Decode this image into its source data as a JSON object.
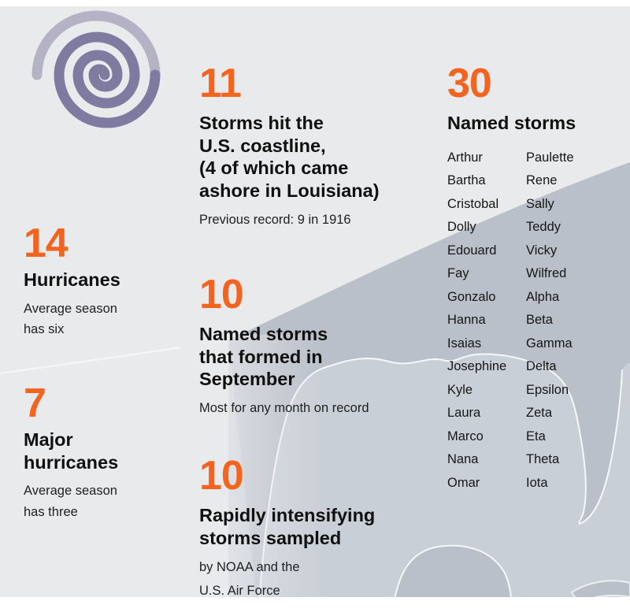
{
  "colors": {
    "accent_orange": "#f4641f",
    "heading_text": "#101010",
    "body_text": "#212121",
    "background_gray": "#e9eaeb",
    "map_land": "#b9c0ca",
    "map_water": "#c9cfd7",
    "spiral_outer": "#b5b2c6",
    "spiral_inner": "#7f7aa0"
  },
  "icon": {
    "name": "hurricane-spiral-icon"
  },
  "stats": {
    "coastline": {
      "number": "11",
      "heading": "Storms hit the\nU.S. coastline,\n(4 of which came\nashore in Louisiana)",
      "note": "Previous record: 9 in 1916"
    },
    "named": {
      "number": "30",
      "heading": "Named storms"
    },
    "hurricanes": {
      "number": "14",
      "heading": "Hurricanes",
      "note": "Average season\nhas six"
    },
    "major": {
      "number": "7",
      "heading": "Major\nhurricanes",
      "note": "Average season\nhas three"
    },
    "september": {
      "number": "10",
      "heading": "Named storms\nthat formed in\nSeptember",
      "note": "Most for any month on record"
    },
    "sampled": {
      "number": "10",
      "heading": "Rapidly intensifying\nstorms sampled",
      "note": "by NOAA and the\nU.S. Air Force"
    }
  },
  "storm_names": {
    "col1": [
      "Arthur",
      "Bartha",
      "Cristobal",
      "Dolly",
      "Edouard",
      "Fay",
      "Gonzalo",
      "Hanna",
      "Isaias",
      "Josephine",
      "Kyle",
      "Laura",
      "Marco",
      "Nana",
      "Omar"
    ],
    "col2": [
      "Paulette",
      "Rene",
      "Sally",
      "Teddy",
      "Vicky",
      "Wilfred",
      "Alpha",
      "Beta",
      "Gamma",
      "Delta",
      "Epsilon",
      "Zeta",
      "Eta",
      "Theta",
      "Iota"
    ]
  }
}
